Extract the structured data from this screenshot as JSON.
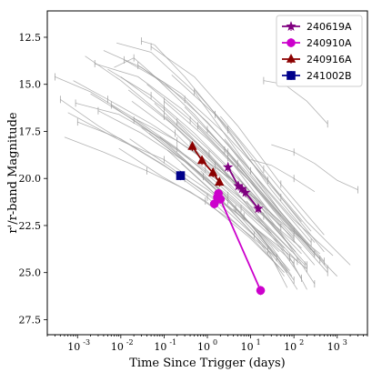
{
  "chart_data": {
    "type": "scatter",
    "xlabel": "Time Since Trigger (days)",
    "ylabel": "r'/r-band Magnitude",
    "xscale": "log",
    "xlim": [
      0.0002,
      5000
    ],
    "ylim": [
      28.3,
      11.1
    ],
    "y_inverted": true,
    "grid": false,
    "legend_position": "top-right",
    "x_ticks": [
      0.001,
      0.01,
      0.1,
      1,
      10,
      100,
      1000
    ],
    "x_tick_labels": [
      "10",
      "10",
      "10",
      "10",
      "10",
      "10",
      "10"
    ],
    "x_tick_exponents": [
      "-3",
      "-2",
      "-1",
      "0",
      "1",
      "2",
      "3"
    ],
    "y_ticks": [
      12.5,
      15.0,
      17.5,
      20.0,
      22.5,
      25.0,
      27.5
    ],
    "y_tick_labels": [
      "12.5",
      "15.0",
      "17.5",
      "20.0",
      "22.5",
      "25.0",
      "27.5"
    ],
    "series": [
      {
        "name": "240619A",
        "color": "#800080",
        "marker": "star",
        "points": [
          {
            "x": 3.0,
            "y": 19.4
          },
          {
            "x": 5.2,
            "y": 20.4
          },
          {
            "x": 6.3,
            "y": 20.55
          },
          {
            "x": 7.6,
            "y": 20.75
          },
          {
            "x": 15.0,
            "y": 21.6
          }
        ]
      },
      {
        "name": "240910A",
        "color": "#cc00cc",
        "marker": "circle",
        "points": [
          {
            "x": 1.45,
            "y": 21.35
          },
          {
            "x": 1.7,
            "y": 21.0
          },
          {
            "x": 1.8,
            "y": 20.8
          },
          {
            "x": 2.0,
            "y": 21.1
          },
          {
            "x": 17.0,
            "y": 25.95
          }
        ]
      },
      {
        "name": "240916A",
        "color": "#8b0000",
        "marker": "triangle",
        "points": [
          {
            "x": 0.45,
            "y": 18.3
          },
          {
            "x": 0.75,
            "y": 19.05
          },
          {
            "x": 1.35,
            "y": 19.7
          },
          {
            "x": 1.9,
            "y": 20.2
          }
        ]
      },
      {
        "name": "241002B",
        "color": "#00008b",
        "marker": "square",
        "points": [
          {
            "x": 0.24,
            "y": 19.85
          }
        ]
      }
    ],
    "background_curves": [
      [
        [
          0.0004,
          15.8
        ],
        [
          0.003,
          17.2
        ],
        [
          0.03,
          18.6
        ],
        [
          0.3,
          20.0
        ],
        [
          3,
          21.5
        ],
        [
          30,
          23.3
        ],
        [
          200,
          24.8
        ]
      ],
      [
        [
          0.0006,
          16.5
        ],
        [
          0.01,
          18.0
        ],
        [
          0.1,
          19.0
        ],
        [
          1,
          20.6
        ],
        [
          10,
          22.4
        ],
        [
          100,
          24.5
        ]
      ],
      [
        [
          0.0008,
          14.8
        ],
        [
          0.005,
          15.8
        ],
        [
          0.05,
          17.1
        ],
        [
          0.5,
          18.6
        ],
        [
          5,
          20.3
        ],
        [
          50,
          22.3
        ],
        [
          400,
          24.0
        ]
      ],
      [
        [
          0.001,
          17.0
        ],
        [
          0.01,
          17.9
        ],
        [
          0.1,
          19.3
        ],
        [
          1,
          21.0
        ],
        [
          10,
          23.1
        ],
        [
          60,
          25.0
        ]
      ],
      [
        [
          0.0015,
          13.5
        ],
        [
          0.01,
          14.8
        ],
        [
          0.1,
          16.7
        ],
        [
          1,
          18.8
        ],
        [
          10,
          21.0
        ],
        [
          100,
          23.2
        ]
      ],
      [
        [
          0.002,
          15.5
        ],
        [
          0.02,
          16.9
        ],
        [
          0.2,
          18.5
        ],
        [
          2,
          20.2
        ],
        [
          20,
          22.0
        ],
        [
          150,
          23.7
        ]
      ],
      [
        [
          0.003,
          16.4
        ],
        [
          0.03,
          17.6
        ],
        [
          0.3,
          19.1
        ],
        [
          3,
          20.9
        ],
        [
          30,
          22.9
        ]
      ],
      [
        [
          0.004,
          13.2
        ],
        [
          0.03,
          14.1
        ],
        [
          0.3,
          15.8
        ],
        [
          3,
          18.2
        ],
        [
          30,
          21.2
        ],
        [
          300,
          24.0
        ]
      ],
      [
        [
          0.005,
          14.2
        ],
        [
          0.05,
          15.6
        ],
        [
          0.5,
          17.6
        ],
        [
          5,
          19.9
        ],
        [
          50,
          22.6
        ]
      ],
      [
        [
          0.006,
          16.1
        ],
        [
          0.06,
          17.7
        ],
        [
          0.6,
          19.6
        ],
        [
          6,
          21.6
        ],
        [
          60,
          23.7
        ]
      ],
      [
        [
          0.008,
          12.8
        ],
        [
          0.05,
          13.3
        ],
        [
          0.5,
          15.4
        ],
        [
          5,
          18.6
        ],
        [
          50,
          21.8
        ],
        [
          500,
          24.4
        ]
      ],
      [
        [
          0.01,
          14.6
        ],
        [
          0.1,
          16.3
        ],
        [
          1,
          18.4
        ],
        [
          10,
          20.7
        ],
        [
          100,
          23.1
        ]
      ],
      [
        [
          0.012,
          13.7
        ],
        [
          0.1,
          14.9
        ],
        [
          1,
          17.0
        ],
        [
          10,
          19.6
        ],
        [
          100,
          22.2
        ],
        [
          800,
          24.1
        ]
      ],
      [
        [
          0.015,
          15.3
        ],
        [
          0.15,
          17.1
        ],
        [
          1.5,
          19.3
        ],
        [
          15,
          21.6
        ],
        [
          150,
          24.0
        ]
      ],
      [
        [
          0.02,
          16.8
        ],
        [
          0.2,
          18.4
        ],
        [
          2,
          20.4
        ],
        [
          20,
          22.5
        ],
        [
          120,
          24.4
        ]
      ],
      [
        [
          0.025,
          14.0
        ],
        [
          0.25,
          15.5
        ],
        [
          2.5,
          17.6
        ],
        [
          25,
          20.1
        ],
        [
          250,
          22.8
        ]
      ],
      [
        [
          0.03,
          17.3
        ],
        [
          0.3,
          19.1
        ],
        [
          3,
          21.2
        ],
        [
          30,
          23.6
        ],
        [
          90,
          25.2
        ]
      ],
      [
        [
          0.04,
          15.0
        ],
        [
          0.4,
          16.9
        ],
        [
          4,
          19.2
        ],
        [
          40,
          21.7
        ],
        [
          400,
          24.3
        ]
      ],
      [
        [
          0.05,
          13.0
        ],
        [
          0.5,
          14.6
        ],
        [
          5,
          17.2
        ],
        [
          50,
          20.3
        ],
        [
          500,
          23.0
        ]
      ],
      [
        [
          0.06,
          16.0
        ],
        [
          0.6,
          18.2
        ],
        [
          6,
          20.6
        ],
        [
          60,
          23.2
        ]
      ],
      [
        [
          0.08,
          17.8
        ],
        [
          0.8,
          19.9
        ],
        [
          8,
          22.2
        ],
        [
          80,
          24.9
        ]
      ],
      [
        [
          0.1,
          15.9
        ],
        [
          1,
          17.9
        ],
        [
          10,
          20.2
        ],
        [
          100,
          22.8
        ],
        [
          1000,
          25.2
        ]
      ],
      [
        [
          0.12,
          18.5
        ],
        [
          1.2,
          20.6
        ],
        [
          12,
          23.0
        ],
        [
          60,
          25.2
        ]
      ],
      [
        [
          0.15,
          14.5
        ],
        [
          1.5,
          16.6
        ],
        [
          15,
          19.6
        ],
        [
          150,
          22.3
        ]
      ],
      [
        [
          0.2,
          17.0
        ],
        [
          2,
          19.4
        ],
        [
          20,
          22.0
        ],
        [
          200,
          24.6
        ]
      ],
      [
        [
          0.25,
          19.2
        ],
        [
          2.5,
          21.3
        ],
        [
          25,
          23.8
        ],
        [
          70,
          25.8
        ]
      ],
      [
        [
          0.3,
          16.2
        ],
        [
          3,
          18.6
        ],
        [
          30,
          21.5
        ],
        [
          300,
          24.1
        ]
      ],
      [
        [
          0.4,
          18.2
        ],
        [
          4,
          20.5
        ],
        [
          40,
          23.4
        ],
        [
          150,
          25.3
        ]
      ],
      [
        [
          0.5,
          15.3
        ],
        [
          5,
          17.9
        ],
        [
          50,
          21.0
        ],
        [
          500,
          23.9
        ]
      ],
      [
        [
          0.7,
          19.6
        ],
        [
          7,
          22.0
        ],
        [
          70,
          24.9
        ]
      ],
      [
        [
          1,
          17.4
        ],
        [
          10,
          19.9
        ],
        [
          100,
          22.6
        ],
        [
          600,
          24.8
        ]
      ],
      [
        [
          1.5,
          20.3
        ],
        [
          15,
          22.9
        ],
        [
          100,
          25.4
        ]
      ],
      [
        [
          2,
          16.7
        ],
        [
          20,
          19.5
        ],
        [
          200,
          22.3
        ],
        [
          2000,
          24.6
        ]
      ],
      [
        [
          3,
          18.9
        ],
        [
          30,
          21.9
        ],
        [
          300,
          24.6
        ]
      ],
      [
        [
          5,
          19.9
        ],
        [
          50,
          22.9
        ],
        [
          300,
          25.6
        ]
      ],
      [
        [
          8,
          21.2
        ],
        [
          80,
          24.2
        ],
        [
          200,
          25.9
        ]
      ],
      [
        [
          0.0003,
          14.6
        ],
        [
          0.002,
          15.4
        ],
        [
          0.02,
          16.8
        ],
        [
          0.2,
          18.0
        ],
        [
          2,
          19.6
        ],
        [
          20,
          21.4
        ]
      ],
      [
        [
          0.0005,
          17.8
        ],
        [
          0.004,
          18.6
        ],
        [
          0.04,
          19.6
        ],
        [
          0.4,
          20.7
        ],
        [
          4,
          22.3
        ],
        [
          40,
          24.2
        ]
      ],
      [
        [
          0.007,
          14.1
        ],
        [
          0.02,
          13.6
        ],
        [
          0.05,
          14.4
        ],
        [
          0.5,
          16.6
        ],
        [
          5,
          19.2
        ],
        [
          50,
          22.0
        ]
      ],
      [
        [
          0.03,
          12.7
        ],
        [
          0.06,
          12.9
        ],
        [
          0.3,
          14.6
        ],
        [
          3,
          17.4
        ],
        [
          30,
          20.6
        ],
        [
          300,
          23.4
        ]
      ],
      [
        [
          0.009,
          18.4
        ],
        [
          0.09,
          19.9
        ],
        [
          0.9,
          21.2
        ],
        [
          9,
          23.1
        ],
        [
          45,
          24.7
        ]
      ],
      [
        [
          0.018,
          15.9
        ],
        [
          0.18,
          17.6
        ],
        [
          1.8,
          19.8
        ],
        [
          18,
          22.2
        ],
        [
          180,
          24.6
        ]
      ],
      [
        [
          0.0009,
          16.0
        ],
        [
          0.009,
          16.6
        ],
        [
          0.09,
          17.9
        ],
        [
          0.9,
          19.5
        ],
        [
          9,
          21.6
        ],
        [
          90,
          23.9
        ]
      ],
      [
        [
          0.045,
          17.6
        ],
        [
          0.45,
          19.4
        ],
        [
          4.5,
          21.6
        ],
        [
          45,
          23.9
        ]
      ],
      [
        [
          0.11,
          16.7
        ],
        [
          1.1,
          18.7
        ],
        [
          11,
          21.2
        ],
        [
          110,
          23.9
        ]
      ],
      [
        [
          0.6,
          17.2
        ],
        [
          6,
          19.6
        ],
        [
          60,
          22.4
        ],
        [
          600,
          25.0
        ]
      ],
      [
        [
          2.5,
          17.9
        ],
        [
          25,
          20.7
        ],
        [
          250,
          23.4
        ]
      ],
      [
        [
          4,
          21.6
        ],
        [
          40,
          24.2
        ],
        [
          120,
          25.9
        ]
      ],
      [
        [
          0.0025,
          13.9
        ],
        [
          0.025,
          14.6
        ],
        [
          0.25,
          16.3
        ],
        [
          2.5,
          18.5
        ],
        [
          25,
          21.1
        ],
        [
          250,
          23.8
        ]
      ],
      [
        [
          0.016,
          17.9
        ],
        [
          0.16,
          19.5
        ],
        [
          1.6,
          21.2
        ],
        [
          16,
          23.3
        ],
        [
          70,
          25.0
        ]
      ],
      [
        [
          30,
          18.2
        ],
        [
          100,
          18.6
        ],
        [
          300,
          19.2
        ],
        [
          1000,
          20.1
        ],
        [
          3000,
          20.6
        ]
      ],
      [
        [
          20,
          14.8
        ],
        [
          60,
          15.0
        ],
        [
          200,
          15.9
        ],
        [
          600,
          17.1
        ]
      ],
      [
        [
          10,
          19.0
        ],
        [
          30,
          19.3
        ],
        [
          100,
          20.0
        ],
        [
          300,
          20.7
        ]
      ]
    ]
  }
}
